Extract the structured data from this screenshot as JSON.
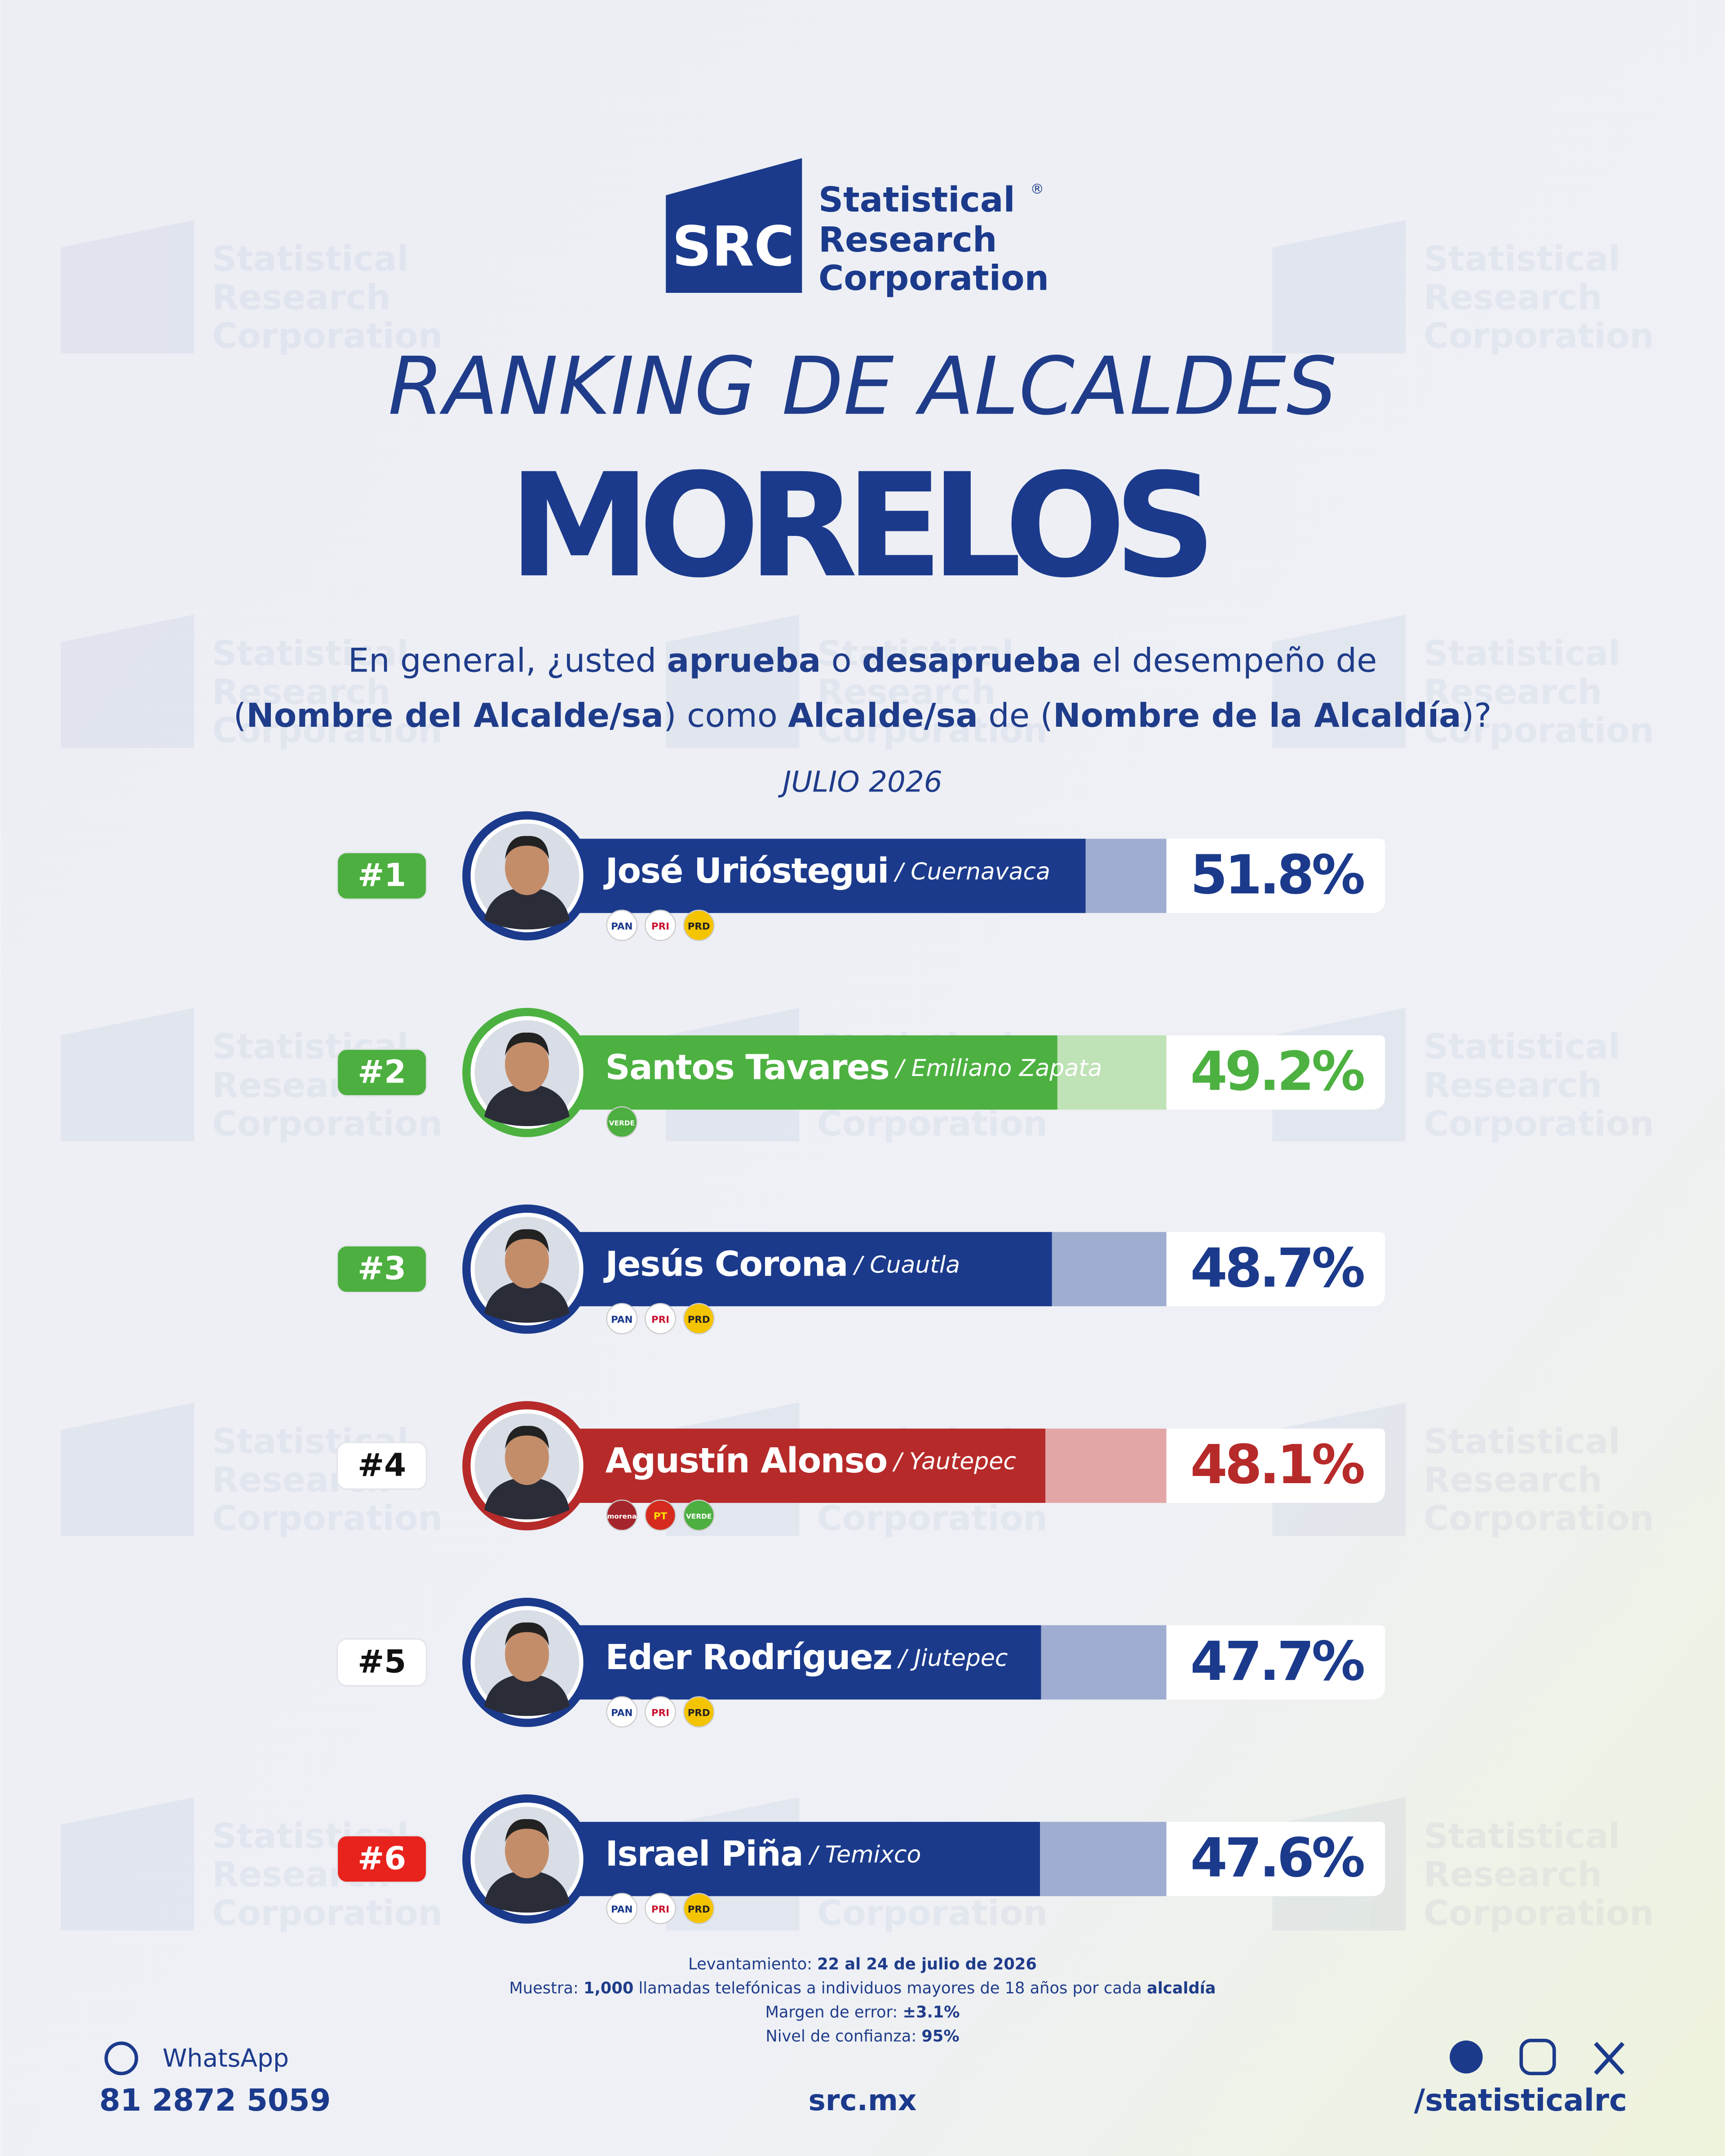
{
  "logo": {
    "mark": "SRC",
    "registered": "®",
    "lines": [
      "Statistical",
      "Research",
      "Corporation"
    ]
  },
  "header": {
    "title": "RANKING DE ALCALDES",
    "state": "MORELOS"
  },
  "question": {
    "lines": [
      [
        {
          "text": "En general, ¿usted ",
          "bold": false
        },
        {
          "text": "aprueba",
          "bold": true
        },
        {
          "text": " o ",
          "bold": false
        },
        {
          "text": "desaprueba",
          "bold": true
        },
        {
          "text": " el desempeño de",
          "bold": false
        }
      ],
      [
        {
          "text": "(",
          "bold": false
        },
        {
          "text": "Nombre del Alcalde/sa",
          "bold": true
        },
        {
          "text": ") como ",
          "bold": false
        },
        {
          "text": "Alcalde/sa",
          "bold": true
        },
        {
          "text": " de (",
          "bold": false
        },
        {
          "text": "Nombre de la Alcaldía",
          "bold": true
        },
        {
          "text": ")?",
          "bold": false
        }
      ]
    ],
    "date": "JULIO 2026"
  },
  "chart_data": {
    "type": "bar",
    "categories": [
      "José Urióstegui",
      "Santos Tavares",
      "Jesús Corona",
      "Agustín Alonso",
      "Eder Rodríguez",
      "Israel Piña"
    ],
    "cities": [
      "/ Cuernavaca",
      "/ Emiliano Zapata",
      "/ Cuautla",
      "/ Yautepec",
      "/ Jiutepec",
      "/ Temixco"
    ],
    "values": [
      51.8,
      49.2,
      48.7,
      48.1,
      47.7,
      47.6
    ],
    "value_labels": [
      "51.8%",
      "49.2%",
      "48.7%",
      "48.1%",
      "47.7%",
      "47.6%"
    ],
    "colors": [
      "#1b3a8c",
      "#4cb140",
      "#1b3a8c",
      "#b72a2a",
      "#1b3a8c",
      "#1b3a8c"
    ],
    "light_colors": [
      "#9eadd0",
      "#bfe2b6",
      "#9eadd0",
      "#e3a6a6",
      "#9eadd0",
      "#9eadd0"
    ],
    "ranks": [
      "#1",
      "#2",
      "#3",
      "#4",
      "#5",
      "#6"
    ],
    "rank_fills": [
      "#4caf3f",
      "#4caf3f",
      "#4caf3f",
      "#ffffff",
      "#ffffff",
      "#e8221c"
    ],
    "rank_inks": [
      "#ffffff",
      "#ffffff",
      "#ffffff",
      "#111111",
      "#111111",
      "#ffffff"
    ],
    "parties": [
      [
        {
          "label": "PAN",
          "fill": "#ffffff",
          "ink": "#1b3a8c"
        },
        {
          "label": "PRI",
          "fill": "#ffffff",
          "ink": "#c8102e"
        },
        {
          "label": "PRD",
          "fill": "#f5c400",
          "ink": "#222222"
        }
      ],
      [
        {
          "label": "VERDE",
          "fill": "#4caf3f",
          "ink": "#ffffff"
        }
      ],
      [
        {
          "label": "PAN",
          "fill": "#ffffff",
          "ink": "#1b3a8c"
        },
        {
          "label": "PRI",
          "fill": "#ffffff",
          "ink": "#c8102e"
        },
        {
          "label": "PRD",
          "fill": "#f5c400",
          "ink": "#222222"
        }
      ],
      [
        {
          "label": "morena",
          "fill": "#a4252b",
          "ink": "#ffffff"
        },
        {
          "label": "PT",
          "fill": "#d52b1e",
          "ink": "#ffe000"
        },
        {
          "label": "VERDE",
          "fill": "#4caf3f",
          "ink": "#ffffff"
        }
      ],
      [
        {
          "label": "PAN",
          "fill": "#ffffff",
          "ink": "#1b3a8c"
        },
        {
          "label": "PRI",
          "fill": "#ffffff",
          "ink": "#c8102e"
        },
        {
          "label": "PRD",
          "fill": "#f5c400",
          "ink": "#222222"
        }
      ],
      [
        {
          "label": "PAN",
          "fill": "#ffffff",
          "ink": "#1b3a8c"
        },
        {
          "label": "PRI",
          "fill": "#ffffff",
          "ink": "#c8102e"
        },
        {
          "label": "PRD",
          "fill": "#f5c400",
          "ink": "#222222"
        }
      ]
    ]
  },
  "methodology": [
    [
      {
        "text": "Levantamiento: ",
        "bold": false
      },
      {
        "text": "22 al 24 de julio de 2026",
        "bold": true
      }
    ],
    [
      {
        "text": "Muestra: ",
        "bold": false
      },
      {
        "text": "1,000",
        "bold": true
      },
      {
        "text": " llamadas telefónicas a individuos mayores de 18 años por cada ",
        "bold": false
      },
      {
        "text": "alcaldía",
        "bold": true
      }
    ],
    [
      {
        "text": "Margen de error: ",
        "bold": false
      },
      {
        "text": "±3.1%",
        "bold": true
      }
    ],
    [
      {
        "text": "Nivel de confianza: ",
        "bold": false
      },
      {
        "text": "95%",
        "bold": true
      }
    ]
  ],
  "footer": {
    "whatsapp_label": "WhatsApp",
    "phone": "81 2872 5059",
    "website": "src.mx",
    "social_handle": "/statisticalrc"
  }
}
